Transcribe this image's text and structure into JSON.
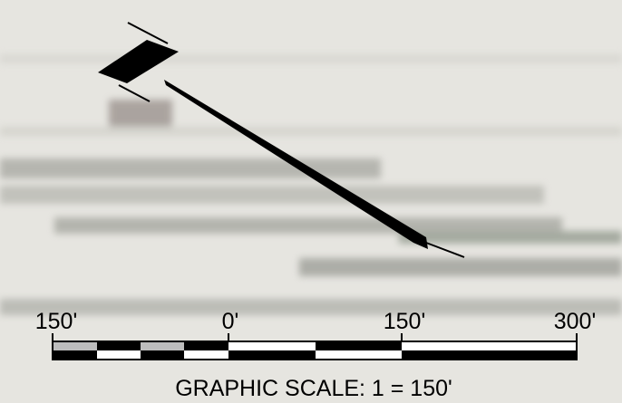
{
  "scale": {
    "labels": [
      "150'",
      "0'",
      "150'",
      "300'"
    ],
    "caption": "GRAPHIC SCALE: 1 = 150'"
  }
}
